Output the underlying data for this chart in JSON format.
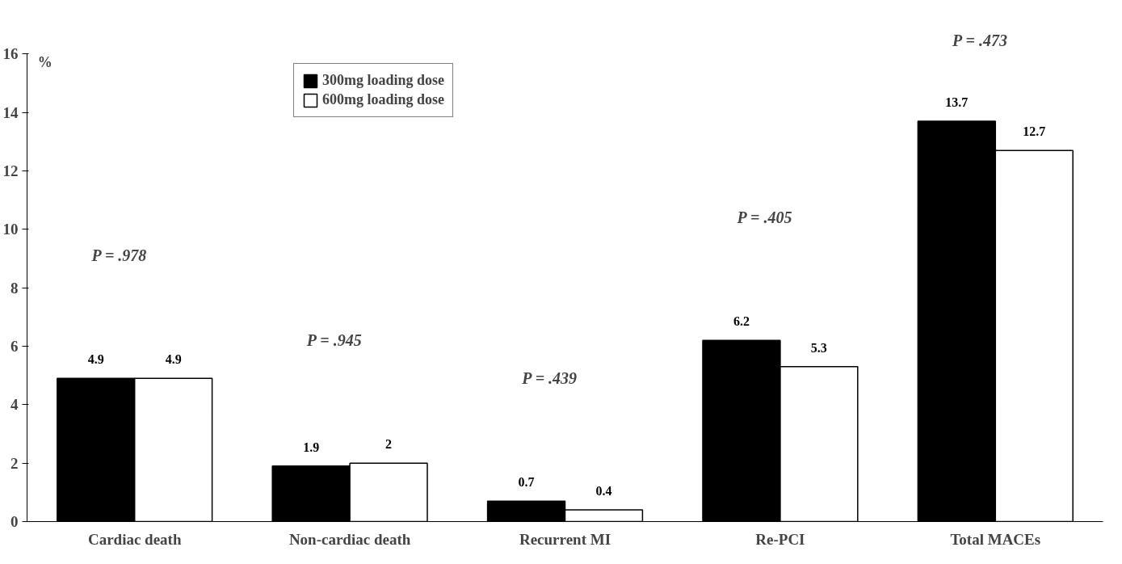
{
  "chart_data": {
    "type": "bar",
    "ylabel": "%",
    "categories": [
      "Cardiac death",
      "Non-cardiac death",
      "Recurrent MI",
      "Re-PCI",
      "Total MACEs"
    ],
    "series": [
      {
        "name": "300mg loading dose",
        "color": "#000000",
        "values": [
          4.9,
          1.9,
          0.7,
          6.2,
          13.7
        ]
      },
      {
        "name": "600mg loading dose",
        "color": "#ffffff",
        "values": [
          4.9,
          2,
          0.4,
          5.3,
          12.7
        ]
      }
    ],
    "ylim": [
      0,
      16
    ],
    "yticks": [
      0,
      2,
      4,
      6,
      8,
      10,
      12,
      14,
      16
    ],
    "data_labels": true,
    "grid": false,
    "legend": "top left",
    "annotations": [
      "P = .978",
      "P = .945",
      "P = .439",
      "P = .405",
      "P = .473"
    ]
  }
}
